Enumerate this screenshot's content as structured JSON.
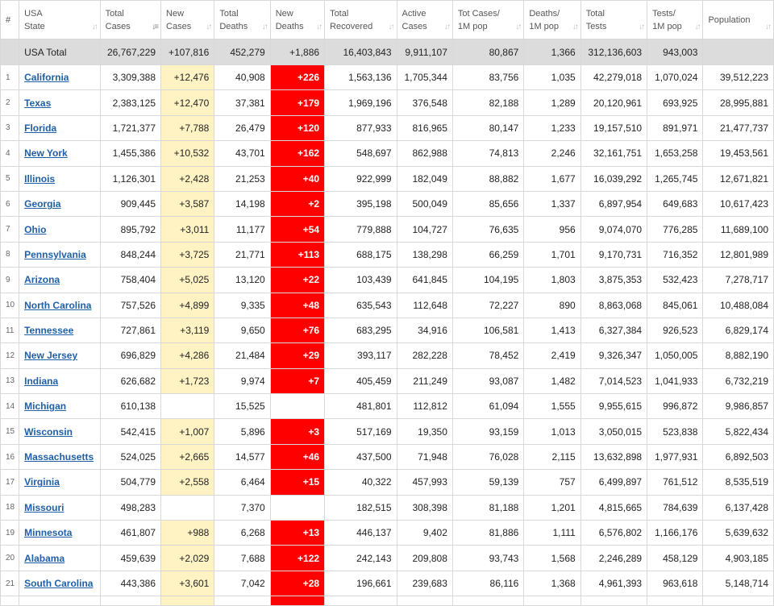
{
  "headers": {
    "num": "#",
    "state": [
      "USA",
      "State"
    ],
    "total_cases": [
      "Total",
      "Cases"
    ],
    "new_cases": [
      "New",
      "Cases"
    ],
    "total_deaths": [
      "Total",
      "Deaths"
    ],
    "new_deaths": [
      "New",
      "Deaths"
    ],
    "total_recovered": [
      "Total",
      "Recovered"
    ],
    "active_cases": [
      "Active",
      "Cases"
    ],
    "tot_cases_1m": [
      "Tot Cases/",
      "1M pop"
    ],
    "deaths_1m": [
      "Deaths/",
      "1M pop"
    ],
    "total_tests": [
      "Total",
      "Tests"
    ],
    "tests_1m": [
      "Tests/",
      "1M pop"
    ],
    "population": [
      "Population",
      ""
    ]
  },
  "sort_icon": "sort-arrows-icon",
  "colors": {
    "new_cases_bg": "#fff3c4",
    "new_deaths_bg": "#ff0000",
    "total_row_bg": "#dcdcdc",
    "link": "#1e5fa8"
  },
  "total": {
    "state": "USA Total",
    "total_cases": "26,767,229",
    "new_cases": "+107,816",
    "total_deaths": "452,279",
    "new_deaths": "+1,886",
    "total_recovered": "16,403,843",
    "active_cases": "9,911,107",
    "tot_cases_1m": "80,867",
    "deaths_1m": "1,366",
    "total_tests": "312,136,603",
    "tests_1m": "943,003",
    "population": ""
  },
  "rows": [
    {
      "num": "1",
      "state": "California",
      "total_cases": "3,309,388",
      "new_cases": "+12,476",
      "total_deaths": "40,908",
      "new_deaths": "+226",
      "total_recovered": "1,563,136",
      "active_cases": "1,705,344",
      "tot_cases_1m": "83,756",
      "deaths_1m": "1,035",
      "total_tests": "42,279,018",
      "tests_1m": "1,070,024",
      "population": "39,512,223"
    },
    {
      "num": "2",
      "state": "Texas",
      "total_cases": "2,383,125",
      "new_cases": "+12,470",
      "total_deaths": "37,381",
      "new_deaths": "+179",
      "total_recovered": "1,969,196",
      "active_cases": "376,548",
      "tot_cases_1m": "82,188",
      "deaths_1m": "1,289",
      "total_tests": "20,120,961",
      "tests_1m": "693,925",
      "population": "28,995,881"
    },
    {
      "num": "3",
      "state": "Florida",
      "total_cases": "1,721,377",
      "new_cases": "+7,788",
      "total_deaths": "26,479",
      "new_deaths": "+120",
      "total_recovered": "877,933",
      "active_cases": "816,965",
      "tot_cases_1m": "80,147",
      "deaths_1m": "1,233",
      "total_tests": "19,157,510",
      "tests_1m": "891,971",
      "population": "21,477,737"
    },
    {
      "num": "4",
      "state": "New York",
      "total_cases": "1,455,386",
      "new_cases": "+10,532",
      "total_deaths": "43,701",
      "new_deaths": "+162",
      "total_recovered": "548,697",
      "active_cases": "862,988",
      "tot_cases_1m": "74,813",
      "deaths_1m": "2,246",
      "total_tests": "32,161,751",
      "tests_1m": "1,653,258",
      "population": "19,453,561"
    },
    {
      "num": "5",
      "state": "Illinois",
      "total_cases": "1,126,301",
      "new_cases": "+2,428",
      "total_deaths": "21,253",
      "new_deaths": "+40",
      "total_recovered": "922,999",
      "active_cases": "182,049",
      "tot_cases_1m": "88,882",
      "deaths_1m": "1,677",
      "total_tests": "16,039,292",
      "tests_1m": "1,265,745",
      "population": "12,671,821"
    },
    {
      "num": "6",
      "state": "Georgia",
      "total_cases": "909,445",
      "new_cases": "+3,587",
      "total_deaths": "14,198",
      "new_deaths": "+2",
      "total_recovered": "395,198",
      "active_cases": "500,049",
      "tot_cases_1m": "85,656",
      "deaths_1m": "1,337",
      "total_tests": "6,897,954",
      "tests_1m": "649,683",
      "population": "10,617,423"
    },
    {
      "num": "7",
      "state": "Ohio",
      "total_cases": "895,792",
      "new_cases": "+3,011",
      "total_deaths": "11,177",
      "new_deaths": "+54",
      "total_recovered": "779,888",
      "active_cases": "104,727",
      "tot_cases_1m": "76,635",
      "deaths_1m": "956",
      "total_tests": "9,074,070",
      "tests_1m": "776,285",
      "population": "11,689,100"
    },
    {
      "num": "8",
      "state": "Pennsylvania",
      "total_cases": "848,244",
      "new_cases": "+3,725",
      "total_deaths": "21,771",
      "new_deaths": "+113",
      "total_recovered": "688,175",
      "active_cases": "138,298",
      "tot_cases_1m": "66,259",
      "deaths_1m": "1,701",
      "total_tests": "9,170,731",
      "tests_1m": "716,352",
      "population": "12,801,989"
    },
    {
      "num": "9",
      "state": "Arizona",
      "total_cases": "758,404",
      "new_cases": "+5,025",
      "total_deaths": "13,120",
      "new_deaths": "+22",
      "total_recovered": "103,439",
      "active_cases": "641,845",
      "tot_cases_1m": "104,195",
      "deaths_1m": "1,803",
      "total_tests": "3,875,353",
      "tests_1m": "532,423",
      "population": "7,278,717"
    },
    {
      "num": "10",
      "state": "North Carolina",
      "total_cases": "757,526",
      "new_cases": "+4,899",
      "total_deaths": "9,335",
      "new_deaths": "+48",
      "total_recovered": "635,543",
      "active_cases": "112,648",
      "tot_cases_1m": "72,227",
      "deaths_1m": "890",
      "total_tests": "8,863,068",
      "tests_1m": "845,061",
      "population": "10,488,084"
    },
    {
      "num": "11",
      "state": "Tennessee",
      "total_cases": "727,861",
      "new_cases": "+3,119",
      "total_deaths": "9,650",
      "new_deaths": "+76",
      "total_recovered": "683,295",
      "active_cases": "34,916",
      "tot_cases_1m": "106,581",
      "deaths_1m": "1,413",
      "total_tests": "6,327,384",
      "tests_1m": "926,523",
      "population": "6,829,174"
    },
    {
      "num": "12",
      "state": "New Jersey",
      "total_cases": "696,829",
      "new_cases": "+4,286",
      "total_deaths": "21,484",
      "new_deaths": "+29",
      "total_recovered": "393,117",
      "active_cases": "282,228",
      "tot_cases_1m": "78,452",
      "deaths_1m": "2,419",
      "total_tests": "9,326,347",
      "tests_1m": "1,050,005",
      "population": "8,882,190"
    },
    {
      "num": "13",
      "state": "Indiana",
      "total_cases": "626,682",
      "new_cases": "+1,723",
      "total_deaths": "9,974",
      "new_deaths": "+7",
      "total_recovered": "405,459",
      "active_cases": "211,249",
      "tot_cases_1m": "93,087",
      "deaths_1m": "1,482",
      "total_tests": "7,014,523",
      "tests_1m": "1,041,933",
      "population": "6,732,219"
    },
    {
      "num": "14",
      "state": "Michigan",
      "total_cases": "610,138",
      "new_cases": "",
      "total_deaths": "15,525",
      "new_deaths": "",
      "total_recovered": "481,801",
      "active_cases": "112,812",
      "tot_cases_1m": "61,094",
      "deaths_1m": "1,555",
      "total_tests": "9,955,615",
      "tests_1m": "996,872",
      "population": "9,986,857"
    },
    {
      "num": "15",
      "state": "Wisconsin",
      "total_cases": "542,415",
      "new_cases": "+1,007",
      "total_deaths": "5,896",
      "new_deaths": "+3",
      "total_recovered": "517,169",
      "active_cases": "19,350",
      "tot_cases_1m": "93,159",
      "deaths_1m": "1,013",
      "total_tests": "3,050,015",
      "tests_1m": "523,838",
      "population": "5,822,434"
    },
    {
      "num": "16",
      "state": "Massachusetts",
      "total_cases": "524,025",
      "new_cases": "+2,665",
      "total_deaths": "14,577",
      "new_deaths": "+46",
      "total_recovered": "437,500",
      "active_cases": "71,948",
      "tot_cases_1m": "76,028",
      "deaths_1m": "2,115",
      "total_tests": "13,632,898",
      "tests_1m": "1,977,931",
      "population": "6,892,503"
    },
    {
      "num": "17",
      "state": "Virginia",
      "total_cases": "504,779",
      "new_cases": "+2,558",
      "total_deaths": "6,464",
      "new_deaths": "+15",
      "total_recovered": "40,322",
      "active_cases": "457,993",
      "tot_cases_1m": "59,139",
      "deaths_1m": "757",
      "total_tests": "6,499,897",
      "tests_1m": "761,512",
      "population": "8,535,519"
    },
    {
      "num": "18",
      "state": "Missouri",
      "total_cases": "498,283",
      "new_cases": "",
      "total_deaths": "7,370",
      "new_deaths": "",
      "total_recovered": "182,515",
      "active_cases": "308,398",
      "tot_cases_1m": "81,188",
      "deaths_1m": "1,201",
      "total_tests": "4,815,665",
      "tests_1m": "784,639",
      "population": "6,137,428"
    },
    {
      "num": "19",
      "state": "Minnesota",
      "total_cases": "461,807",
      "new_cases": "+988",
      "total_deaths": "6,268",
      "new_deaths": "+13",
      "total_recovered": "446,137",
      "active_cases": "9,402",
      "tot_cases_1m": "81,886",
      "deaths_1m": "1,111",
      "total_tests": "6,576,802",
      "tests_1m": "1,166,176",
      "population": "5,639,632"
    },
    {
      "num": "20",
      "state": "Alabama",
      "total_cases": "459,639",
      "new_cases": "+2,029",
      "total_deaths": "7,688",
      "new_deaths": "+122",
      "total_recovered": "242,143",
      "active_cases": "209,808",
      "tot_cases_1m": "93,743",
      "deaths_1m": "1,568",
      "total_tests": "2,246,289",
      "tests_1m": "458,129",
      "population": "4,903,185"
    },
    {
      "num": "21",
      "state": "South Carolina",
      "total_cases": "443,386",
      "new_cases": "+3,601",
      "total_deaths": "7,042",
      "new_deaths": "+28",
      "total_recovered": "196,661",
      "active_cases": "239,683",
      "tot_cases_1m": "86,116",
      "deaths_1m": "1,368",
      "total_tests": "4,961,393",
      "tests_1m": "963,618",
      "population": "5,148,714"
    }
  ]
}
